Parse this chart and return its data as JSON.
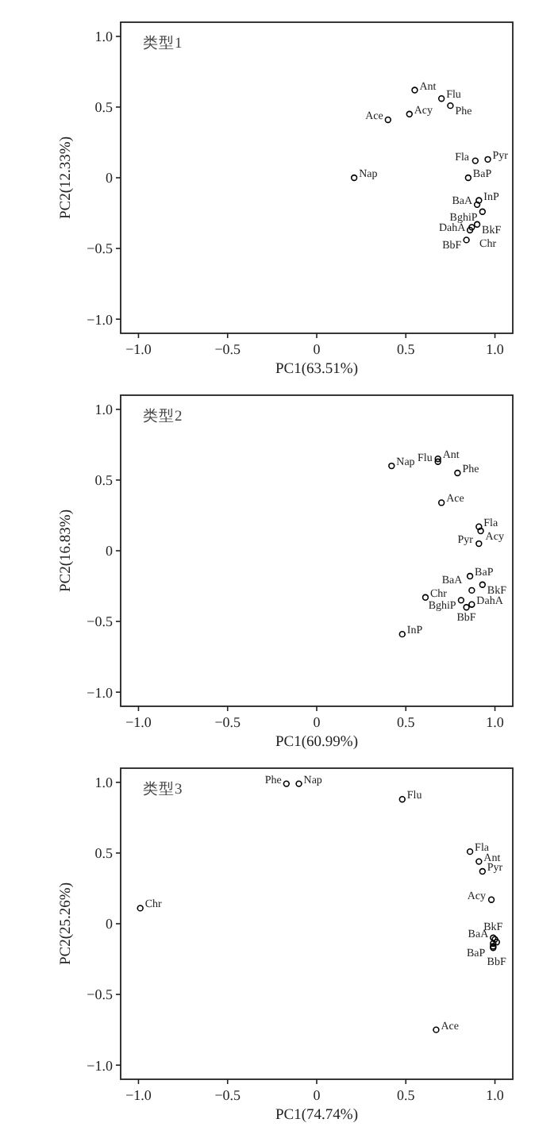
{
  "chart_data": [
    {
      "type": "scatter",
      "title": "类型1",
      "xlabel": "PC1(63.51%)",
      "ylabel": "PC2(12.33%)",
      "xlim": [
        -1.1,
        1.1
      ],
      "ylim": [
        -1.1,
        1.1
      ],
      "xticks": [
        {
          "value": -1,
          "label": "−1.0"
        },
        {
          "value": -0.5,
          "label": "−0.5"
        },
        {
          "value": 0,
          "label": "0"
        },
        {
          "value": 0.5,
          "label": "0.5"
        },
        {
          "value": 1,
          "label": "1.0"
        }
      ],
      "yticks": [
        {
          "value": -1,
          "label": "−1.0"
        },
        {
          "value": -0.5,
          "label": "−0.5"
        },
        {
          "value": 0,
          "label": "0"
        },
        {
          "value": 0.5,
          "label": "0.5"
        },
        {
          "value": 1,
          "label": "1.0"
        }
      ],
      "marker": "circle",
      "color": "#000000",
      "x": [
        0.55,
        0.7,
        0.75,
        0.4,
        0.52,
        0.89,
        0.96,
        0.21,
        0.85,
        0.91,
        0.9,
        0.93,
        0.9,
        0.87,
        0.86,
        0.84
      ],
      "values": [
        0.62,
        0.56,
        0.51,
        0.41,
        0.45,
        0.12,
        0.13,
        0.0,
        0.0,
        -0.16,
        -0.19,
        -0.24,
        -0.33,
        -0.35,
        -0.37,
        -0.44
      ],
      "annotations": [
        {
          "text": "Ant",
          "x": 0.55,
          "y": 0.62
        },
        {
          "text": "Flu",
          "x": 0.7,
          "y": 0.56
        },
        {
          "text": "Phe",
          "x": 0.75,
          "y": 0.51
        },
        {
          "text": "Ace",
          "x": 0.4,
          "y": 0.41
        },
        {
          "text": "Acy",
          "x": 0.52,
          "y": 0.45
        },
        {
          "text": "Fla",
          "x": 0.89,
          "y": 0.12
        },
        {
          "text": "Pyr",
          "x": 0.96,
          "y": 0.13
        },
        {
          "text": "Nap",
          "x": 0.21,
          "y": 0.0
        },
        {
          "text": "BaP",
          "x": 0.85,
          "y": 0.0
        },
        {
          "text": "InP",
          "x": 0.91,
          "y": -0.16
        },
        {
          "text": "BaA",
          "x": 0.9,
          "y": -0.19
        },
        {
          "text": "BghiP",
          "x": 0.93,
          "y": -0.24
        },
        {
          "text": "BkF",
          "x": 0.9,
          "y": -0.33
        },
        {
          "text": "DahA",
          "x": 0.87,
          "y": -0.35
        },
        {
          "text": "Chr",
          "x": 0.86,
          "y": -0.37
        },
        {
          "text": "BbF",
          "x": 0.84,
          "y": -0.44
        }
      ]
    },
    {
      "type": "scatter",
      "title": "类型2",
      "xlabel": "PC1(60.99%)",
      "ylabel": "PC2(16.83%)",
      "xlim": [
        -1.1,
        1.1
      ],
      "ylim": [
        -1.1,
        1.1
      ],
      "xticks": [
        {
          "value": -1,
          "label": "−1.0"
        },
        {
          "value": -0.5,
          "label": "−0.5"
        },
        {
          "value": 0,
          "label": "0"
        },
        {
          "value": 0.5,
          "label": "0.5"
        },
        {
          "value": 1,
          "label": "1.0"
        }
      ],
      "yticks": [
        {
          "value": -1,
          "label": "−1.0"
        },
        {
          "value": -0.5,
          "label": "−0.5"
        },
        {
          "value": 0,
          "label": "0"
        },
        {
          "value": 0.5,
          "label": "0.5"
        },
        {
          "value": 1,
          "label": "1.0"
        }
      ],
      "marker": "circle",
      "color": "#000000",
      "x": [
        0.42,
        0.68,
        0.68,
        0.79,
        0.7,
        0.91,
        0.92,
        0.91,
        0.81,
        0.86,
        0.93,
        0.61,
        0.87,
        0.84,
        0.87,
        0.48
      ],
      "values": [
        0.6,
        0.65,
        0.63,
        0.55,
        0.34,
        0.17,
        0.14,
        0.05,
        -0.35,
        -0.18,
        -0.24,
        -0.33,
        -0.28,
        -0.4,
        -0.38,
        -0.59
      ],
      "annotations": [
        {
          "text": "Nap",
          "x": 0.42,
          "y": 0.6
        },
        {
          "text": "Ant",
          "x": 0.68,
          "y": 0.65
        },
        {
          "text": "Flu",
          "x": 0.68,
          "y": 0.63
        },
        {
          "text": "Phe",
          "x": 0.79,
          "y": 0.55
        },
        {
          "text": "Ace",
          "x": 0.7,
          "y": 0.34
        },
        {
          "text": "Fla",
          "x": 0.91,
          "y": 0.17
        },
        {
          "text": "Acy",
          "x": 0.92,
          "y": 0.14
        },
        {
          "text": "Pyr",
          "x": 0.91,
          "y": 0.05
        },
        {
          "text": "BghiP",
          "x": 0.81,
          "y": -0.35
        },
        {
          "text": "BaP",
          "x": 0.86,
          "y": -0.18
        },
        {
          "text": "BkF",
          "x": 0.93,
          "y": -0.24
        },
        {
          "text": "Chr",
          "x": 0.61,
          "y": -0.33
        },
        {
          "text": "BaA",
          "x": 0.87,
          "y": -0.28
        },
        {
          "text": "BbF",
          "x": 0.84,
          "y": -0.4
        },
        {
          "text": "DahA",
          "x": 0.87,
          "y": -0.38
        },
        {
          "text": "InP",
          "x": 0.48,
          "y": -0.59
        }
      ]
    },
    {
      "type": "scatter",
      "title": "类型3",
      "xlabel": "PC1(74.74%)",
      "ylabel": "PC2(25.26%)",
      "xlim": [
        -1.1,
        1.1
      ],
      "ylim": [
        -1.1,
        1.1
      ],
      "xticks": [
        {
          "value": -1,
          "label": "−1.0"
        },
        {
          "value": -0.5,
          "label": "−0.5"
        },
        {
          "value": 0,
          "label": "0"
        },
        {
          "value": 0.5,
          "label": "0.5"
        },
        {
          "value": 1,
          "label": "1.0"
        }
      ],
      "yticks": [
        {
          "value": -1,
          "label": "−1.0"
        },
        {
          "value": -0.5,
          "label": "−0.5"
        },
        {
          "value": 0,
          "label": "0"
        },
        {
          "value": 0.5,
          "label": "0.5"
        },
        {
          "value": 1,
          "label": "1.0"
        }
      ],
      "marker": "circle",
      "color": "#000000",
      "x": [
        -0.17,
        -0.1,
        0.48,
        0.86,
        0.91,
        0.93,
        0.98,
        -0.99,
        0.67,
        0.99,
        1.0,
        1.01,
        0.99,
        0.99,
        0.99
      ],
      "values": [
        0.99,
        0.99,
        0.88,
        0.51,
        0.44,
        0.37,
        0.17,
        0.11,
        -0.75,
        -0.1,
        -0.11,
        -0.13,
        -0.14,
        -0.16,
        -0.17
      ],
      "annotations": [
        {
          "text": "Phe",
          "x": -0.17,
          "y": 0.99
        },
        {
          "text": "Nap",
          "x": -0.1,
          "y": 0.99
        },
        {
          "text": "Flu",
          "x": 0.48,
          "y": 0.88
        },
        {
          "text": "Fla",
          "x": 0.86,
          "y": 0.51
        },
        {
          "text": "Ant",
          "x": 0.91,
          "y": 0.44
        },
        {
          "text": "Pyr",
          "x": 0.93,
          "y": 0.37
        },
        {
          "text": "Acy",
          "x": 0.98,
          "y": 0.17
        },
        {
          "text": "Chr",
          "x": -0.99,
          "y": 0.11
        },
        {
          "text": "Ace",
          "x": 0.67,
          "y": -0.75
        },
        {
          "text": "BaA",
          "x": 0.99,
          "y": -0.1
        },
        {
          "text": "BaP",
          "x": 1.0,
          "y": -0.11
        },
        {
          "text": "BbF",
          "x": 1.01,
          "y": -0.13
        },
        {
          "text": "BkF",
          "x": 0.99,
          "y": -0.14
        }
      ]
    }
  ]
}
